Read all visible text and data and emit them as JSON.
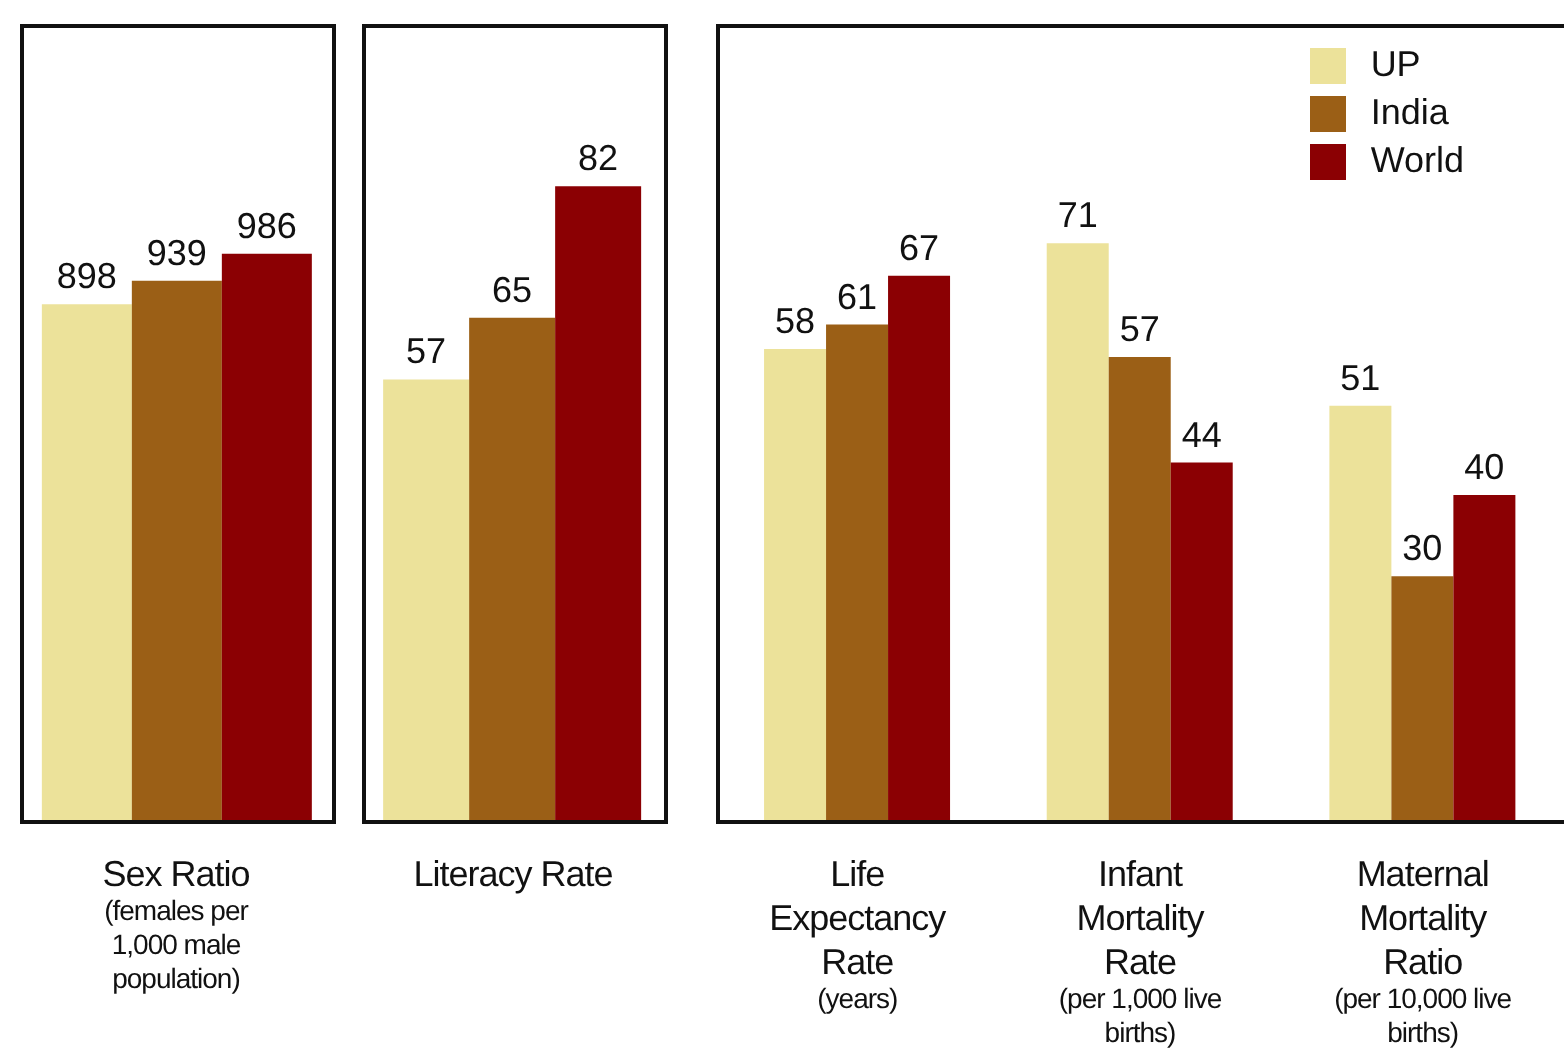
{
  "chart_data": [
    {
      "type": "bar",
      "categories": [
        "Sex Ratio\n(females per\n1,000 male\npopulation)"
      ],
      "series": [
        {
          "color": "#ece29a",
          "values": [
            898
          ]
        },
        {
          "color": "#9b5f16",
          "values": [
            939
          ]
        },
        {
          "color": "#8b0003",
          "values": [
            986
          ]
        }
      ],
      "data_labels": true,
      "ylim": [
        0,
        1386
      ],
      "grid": false,
      "legend": false
    },
    {
      "type": "bar",
      "categories": [
        "Literacy Rate"
      ],
      "series": [
        {
          "color": "#ece29a",
          "values": [
            57
          ]
        },
        {
          "color": "#9b5f16",
          "values": [
            65
          ]
        },
        {
          "color": "#8b0003",
          "values": [
            82
          ]
        }
      ],
      "data_labels": true,
      "ylim": [
        0,
        103
      ],
      "grid": false,
      "legend": false
    },
    {
      "type": "bar",
      "categories": [
        "Life\nExpectancy\nRate\n(years)",
        "Infant\nMortality\nRate\n(per 1,000 live\nbirths)",
        "Maternal\nMortality\nRatio\n(per 10,000 live\nbirths)"
      ],
      "series": [
        {
          "name": "UP",
          "color": "#ece29a",
          "values": [
            58,
            71,
            51
          ]
        },
        {
          "name": "India",
          "color": "#9b5f16",
          "values": [
            61,
            57,
            30
          ]
        },
        {
          "name": "World",
          "color": "#8b0003",
          "values": [
            67,
            44,
            40
          ]
        }
      ],
      "data_labels": true,
      "ylim": [
        0,
        98
      ],
      "grid": false,
      "legend": "top right"
    }
  ]
}
